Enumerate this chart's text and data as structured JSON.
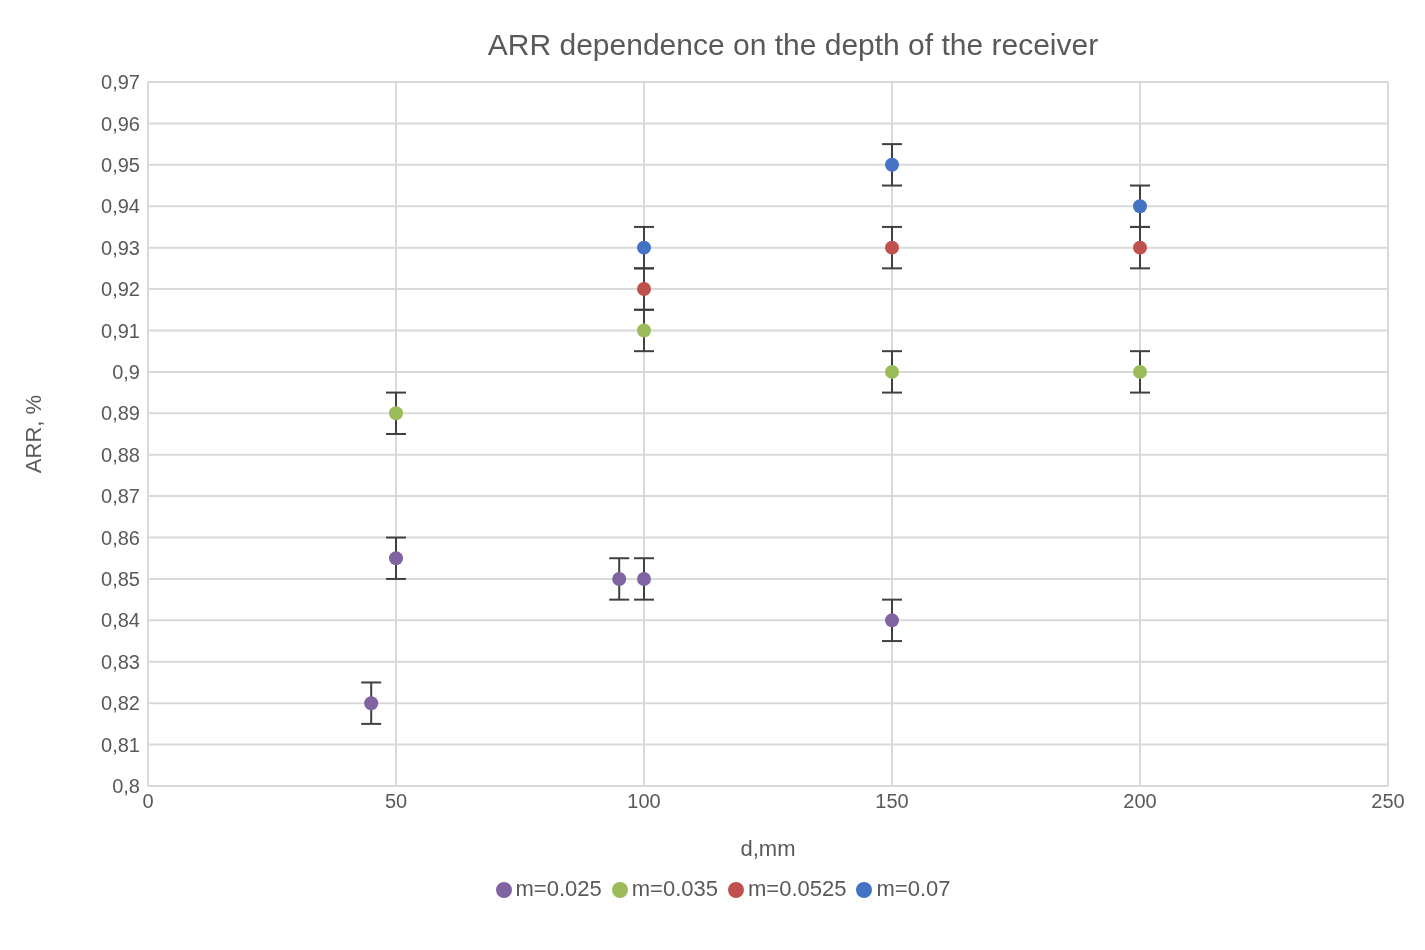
{
  "chart_data": {
    "type": "scatter",
    "title": "ARR dependence  on the depth of the receiver",
    "xlabel": "d,mm",
    "ylabel": "ARR, %",
    "xlim": [
      0,
      250
    ],
    "xticks": [
      0,
      50,
      100,
      150,
      200,
      250
    ],
    "ylim": [
      0.8,
      0.97
    ],
    "yticks": [
      {
        "value": 0.8,
        "label": "0,8"
      },
      {
        "value": 0.81,
        "label": "0,81"
      },
      {
        "value": 0.82,
        "label": "0,82"
      },
      {
        "value": 0.83,
        "label": "0,83"
      },
      {
        "value": 0.84,
        "label": "0,84"
      },
      {
        "value": 0.85,
        "label": "0,85"
      },
      {
        "value": 0.86,
        "label": "0,86"
      },
      {
        "value": 0.87,
        "label": "0,87"
      },
      {
        "value": 0.88,
        "label": "0,88"
      },
      {
        "value": 0.89,
        "label": "0,89"
      },
      {
        "value": 0.9,
        "label": "0,9"
      },
      {
        "value": 0.91,
        "label": "0,91"
      },
      {
        "value": 0.92,
        "label": "0,92"
      },
      {
        "value": 0.93,
        "label": "0,93"
      },
      {
        "value": 0.94,
        "label": "0,94"
      },
      {
        "value": 0.95,
        "label": "0,95"
      },
      {
        "value": 0.96,
        "label": "0,96"
      },
      {
        "value": 0.97,
        "label": "0,97"
      }
    ],
    "grid": true,
    "legend": "bottom",
    "marker": "circle",
    "series": [
      {
        "name": "m=0.07",
        "color": "#4472c4",
        "x": [
          100,
          150,
          200
        ],
        "values": [
          0.93,
          0.95,
          0.94
        ],
        "errors": [
          0.005,
          0.005,
          0.005
        ]
      },
      {
        "name": "m=0.0525",
        "color": "#c0504d",
        "x": [
          100,
          150,
          200
        ],
        "values": [
          0.92,
          0.93,
          0.93
        ],
        "errors": [
          0.005,
          0.005,
          0.005
        ]
      },
      {
        "name": "m=0.035",
        "color": "#9bbb59",
        "x": [
          50,
          100,
          150,
          200
        ],
        "values": [
          0.89,
          0.91,
          0.9,
          0.9
        ],
        "errors": [
          0.005,
          0.005,
          0.005,
          0.005
        ]
      },
      {
        "name": "m=0.025",
        "color": "#8064a2",
        "x": [
          45,
          50,
          95,
          100,
          150
        ],
        "values": [
          0.82,
          0.855,
          0.85,
          0.85,
          0.84
        ],
        "errors": [
          0.005,
          0.005,
          0.005,
          0.005,
          0.005
        ]
      }
    ]
  }
}
